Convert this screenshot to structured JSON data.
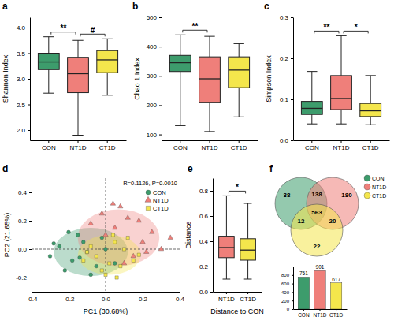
{
  "chart_data": [
    {
      "type": "box",
      "panel": "a",
      "y_label": "Shannon Index",
      "categories": [
        "CON",
        "NT1D",
        "CT1D"
      ],
      "colors": [
        "#3d9c6c",
        "#ef7f7a",
        "#f4e64c"
      ],
      "ylim": [
        1.8,
        4.2
      ],
      "yticks": [
        {
          "value": 2,
          "label": "2.0"
        },
        2.5,
        {
          "value": 3,
          "label": "3.0"
        },
        3.5,
        {
          "value": 4,
          "label": "4.0"
        }
      ],
      "boxes": [
        {
          "min": 2.72,
          "q1": 3.18,
          "median": 3.33,
          "q3": 3.5,
          "max": 3.82
        },
        {
          "min": 1.9,
          "q1": 2.73,
          "median": 3.1,
          "q3": 3.42,
          "max": 3.75
        },
        {
          "min": 2.68,
          "q1": 3.12,
          "median": 3.37,
          "q3": 3.55,
          "max": 3.78
        }
      ],
      "annotations": [
        {
          "text": "**",
          "between": [
            "CON",
            "NT1D"
          ]
        },
        {
          "text": "#",
          "between": [
            "NT1D",
            "CT1D"
          ]
        }
      ]
    },
    {
      "type": "box",
      "panel": "b",
      "y_label": "Chao 1 Index",
      "categories": [
        "CON",
        "NT1D",
        "CT1D"
      ],
      "colors": [
        "#3d9c6c",
        "#ef7f7a",
        "#f4e64c"
      ],
      "ylim": [
        80,
        500
      ],
      "yticks": [
        100,
        200,
        300,
        400,
        500
      ],
      "boxes": [
        {
          "min": 130,
          "q1": 315,
          "median": 345,
          "q3": 370,
          "max": 440
        },
        {
          "min": 110,
          "q1": 210,
          "median": 290,
          "q3": 365,
          "max": 435
        },
        {
          "min": 160,
          "q1": 260,
          "median": 320,
          "q3": 365,
          "max": 410
        }
      ],
      "annotations": [
        {
          "text": "**",
          "between": [
            "CON",
            "NT1D"
          ]
        }
      ]
    },
    {
      "type": "box",
      "panel": "c",
      "y_label": "Simpson Index",
      "categories": [
        "CON",
        "NT1D",
        "CT1D"
      ],
      "colors": [
        "#3d9c6c",
        "#ef7f7a",
        "#f4e64c"
      ],
      "ylim": [
        0,
        0.3
      ],
      "yticks": [
        {
          "value": 0,
          "label": "0.0"
        },
        0.1,
        0.2,
        0.3
      ],
      "boxes": [
        {
          "min": 0.04,
          "q1": 0.063,
          "median": 0.078,
          "q3": 0.095,
          "max": 0.168
        },
        {
          "min": 0.04,
          "q1": 0.075,
          "median": 0.102,
          "q3": 0.158,
          "max": 0.255
        },
        {
          "min": 0.038,
          "q1": 0.058,
          "median": 0.072,
          "q3": 0.09,
          "max": 0.158
        }
      ],
      "annotations": [
        {
          "text": "**",
          "between": [
            "CON",
            "NT1D"
          ]
        },
        {
          "text": "*",
          "between": [
            "NT1D",
            "CT1D"
          ]
        }
      ]
    },
    {
      "type": "scatter",
      "panel": "d",
      "x_label": "PC1 (30.68%)",
      "y_label": "PC2 (21.65%)",
      "annotation": "R=0.1126, P=0.0010",
      "xlim": [
        -0.4,
        0.4
      ],
      "ylim": [
        -0.3,
        0.5
      ],
      "xticks": [
        -0.4,
        -0.2,
        {
          "value": 0,
          "label": "0.0"
        },
        0.2,
        0.4
      ],
      "yticks": [
        -0.2,
        {
          "value": 0,
          "label": "0.0"
        },
        0.2,
        0.4
      ],
      "hlines": [
        0
      ],
      "vlines": [
        0
      ],
      "legend": "top-right",
      "series": [
        {
          "name": "CON",
          "color": "#3d9c6c",
          "marker": "circle",
          "x": [
            -0.25,
            -0.18,
            -0.12,
            -0.3,
            -0.05,
            -0.15,
            -0.2,
            -0.08,
            0.0,
            -0.22,
            -0.1,
            -0.02,
            -0.28,
            0.05,
            -0.14
          ],
          "values": [
            0.02,
            -0.08,
            0.05,
            -0.05,
            -0.12,
            0.1,
            0.12,
            -0.18,
            0.0,
            -0.15,
            -0.02,
            0.08,
            0.04,
            -0.1,
            -0.06
          ],
          "ellipse": {
            "cx": -0.08,
            "cy": -0.02,
            "rx": 0.2,
            "ry": 0.17
          }
        },
        {
          "name": "NT1D",
          "color": "#ef7f7a",
          "marker": "triangle",
          "x": [
            0.05,
            0.12,
            0.2,
            -0.02,
            0.15,
            0.25,
            0.08,
            0.3,
            0.0,
            0.18,
            0.1,
            -0.08,
            0.22,
            0.35,
            0.04
          ],
          "values": [
            0.15,
            0.22,
            0.05,
            0.25,
            -0.05,
            0.12,
            0.3,
            0.0,
            0.1,
            0.2,
            -0.1,
            0.18,
            -0.02,
            0.08,
            0.32
          ],
          "ellipse": {
            "cx": 0.07,
            "cy": 0.08,
            "rx": 0.22,
            "ry": 0.2
          }
        },
        {
          "name": "CT1D",
          "color": "#f4e64c",
          "marker": "square",
          "x": [
            -0.05,
            0.02,
            0.1,
            -0.1,
            0.15,
            0.05,
            -0.02,
            0.08,
            0.12,
            -0.08,
            0.0,
            0.18,
            0.04,
            -0.12,
            0.06
          ],
          "values": [
            -0.05,
            -0.1,
            0.0,
            -0.02,
            -0.08,
            0.05,
            -0.15,
            -0.12,
            0.08,
            0.02,
            -0.18,
            -0.04,
            0.1,
            -0.08,
            -0.2
          ],
          "ellipse": {
            "cx": 0.02,
            "cy": -0.04,
            "rx": 0.17,
            "ry": 0.14
          }
        }
      ]
    },
    {
      "type": "box",
      "panel": "e",
      "y_label": "Distance",
      "x_label": "Distance to CON",
      "categories": [
        "NT1D",
        "CT1D"
      ],
      "colors": [
        "#ef7f7a",
        "#f4e64c"
      ],
      "ylim": [
        0,
        0.9
      ],
      "yticks": [
        {
          "value": 0,
          "label": "0.0"
        },
        0.2,
        0.4,
        0.6,
        0.8
      ],
      "boxes": [
        {
          "min": 0.1,
          "q1": 0.27,
          "median": 0.35,
          "q3": 0.44,
          "max": 0.76
        },
        {
          "min": 0.1,
          "q1": 0.25,
          "median": 0.33,
          "q3": 0.42,
          "max": 0.7
        }
      ],
      "annotations": [
        {
          "text": "*",
          "between": [
            "NT1D",
            "CT1D"
          ]
        }
      ]
    },
    {
      "type": "venn",
      "panel": "f",
      "sets": [
        "CON",
        "NT1D",
        "CT1D"
      ],
      "colors": [
        "#3d9c6c",
        "#ef7f7a",
        "#f4e64c"
      ],
      "legend": "top-right",
      "regions": [
        {
          "sets": [
            "CON"
          ],
          "value": 38
        },
        {
          "sets": [
            "CON",
            "NT1D"
          ],
          "value": 138
        },
        {
          "sets": [
            "NT1D"
          ],
          "value": 180
        },
        {
          "sets": [
            "CON",
            "CT1D"
          ],
          "value": 12
        },
        {
          "sets": [
            "CON",
            "NT1D",
            "CT1D"
          ],
          "value": 563
        },
        {
          "sets": [
            "NT1D",
            "CT1D"
          ],
          "value": 20
        },
        {
          "sets": [
            "CT1D"
          ],
          "value": 22
        }
      ]
    },
    {
      "type": "bar",
      "categories": [
        "CON",
        "NT1D",
        "CT1D"
      ],
      "values": [
        751,
        901,
        617
      ],
      "colors": [
        "#3d9c6c",
        "#ef7f7a",
        "#f4e64c"
      ],
      "ylim": [
        0,
        1000
      ],
      "yticks": [
        0,
        200,
        400,
        600,
        800
      ],
      "data_labels": true
    }
  ]
}
